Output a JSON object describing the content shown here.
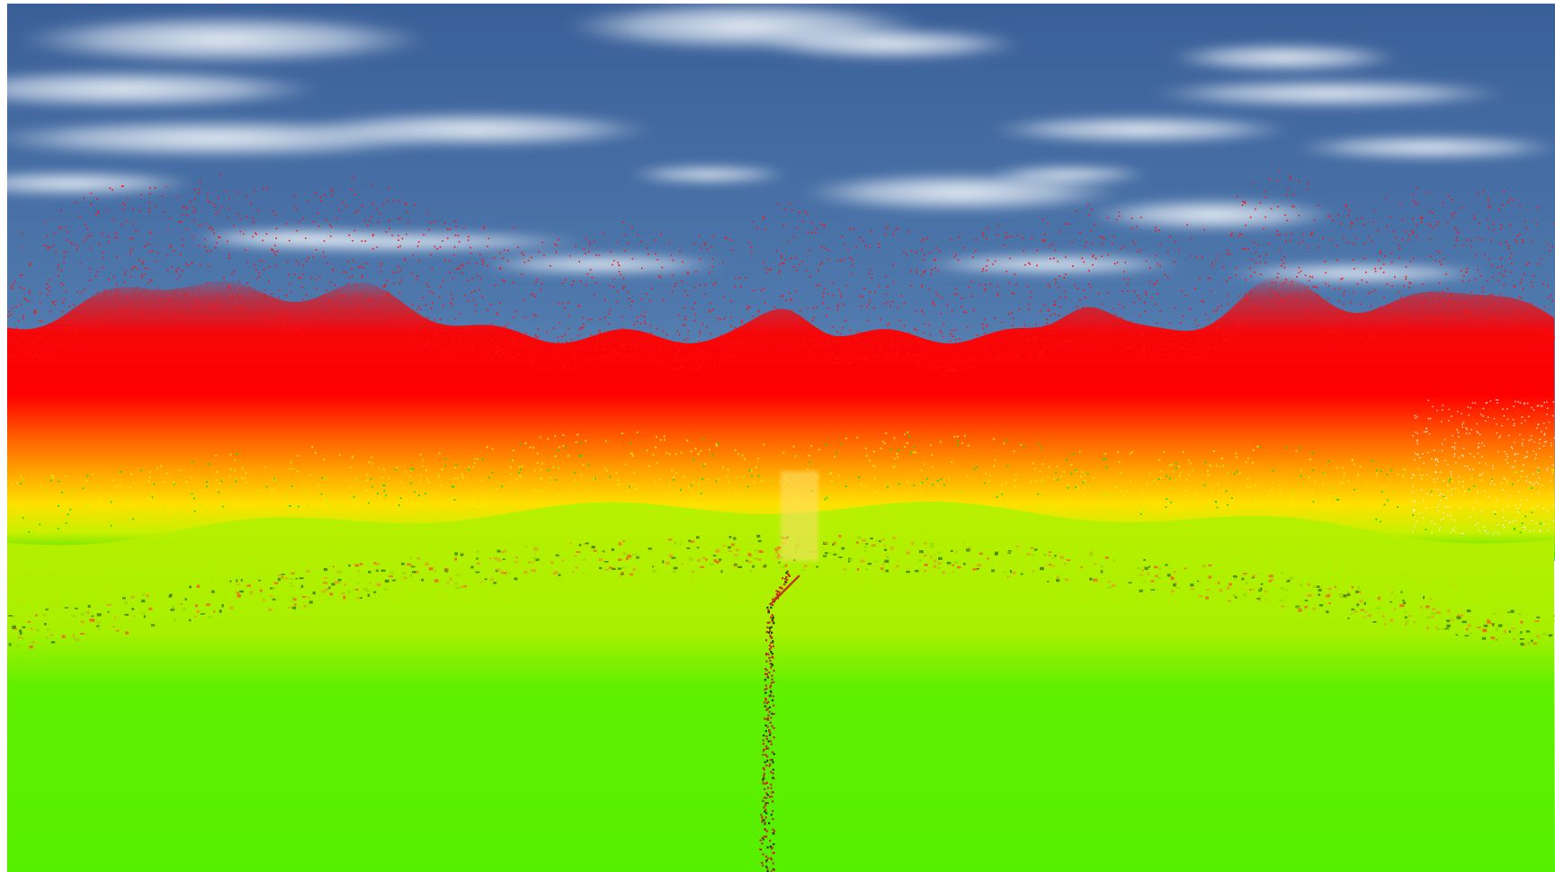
{
  "scene": {
    "description_name": "point-cloud-height-colored-terrain-view",
    "colors": {
      "sky_top": "#3a5f98",
      "sky_mid": "#4f79ad",
      "sky_horizon": "#7d9cc4",
      "cloud": "#e8eef5",
      "points_high": "#ff0000",
      "points_mid": "#ff8800",
      "points_low": "#ffee00",
      "band_green": "#22dd00",
      "ground_far": "#b8f000",
      "ground_near": "#55f000",
      "trail": "#c83010",
      "trail_dark": "#1a3a14"
    }
  }
}
